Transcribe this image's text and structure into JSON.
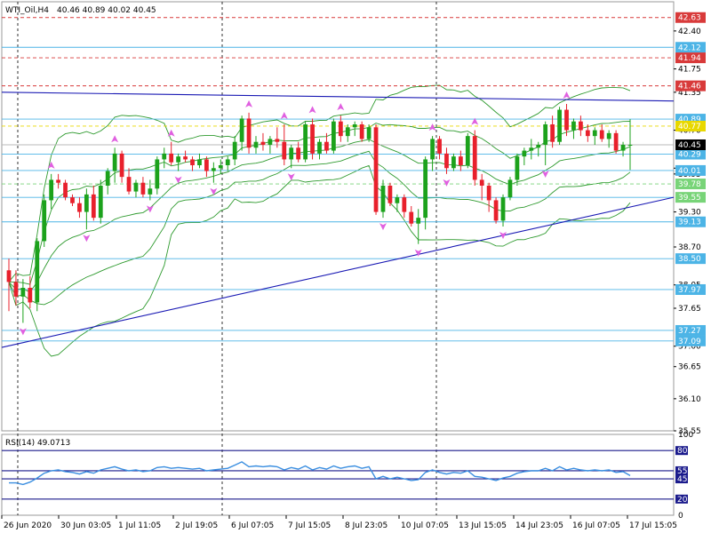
{
  "header": {
    "symbol_title": "WTI_Oil,H4",
    "ohlc": "40.46 40.89 40.02 40.45"
  },
  "colors": {
    "bull": "#1ca21c",
    "bear": "#e8202c",
    "line_blue": "#1a1ab4",
    "bb_band": "#2e9a2e",
    "hline_cyan": "#4cb4e6",
    "hline_red_dash": "#d83a3a",
    "hline_yellow_dash": "#e8d800",
    "hline_green_dash": "#78d478",
    "rsi_line": "#3a8ee0",
    "arrow_marker": "#e060e0"
  },
  "chart_data": [
    {
      "type": "candlestick",
      "name": "price-panel",
      "ylim": [
        35.55,
        42.9
      ],
      "y_ticks": [
        "42.40",
        "41.75",
        "41.35",
        "40.70",
        "40.05",
        "39.95",
        "39.30",
        "38.70",
        "38.05",
        "37.65",
        "37.00",
        "36.65",
        "36.10",
        "35.55"
      ],
      "x_tick_labels": [
        "26 Jun 2020",
        "30 Jun 03:05",
        "1 Jul 11:05",
        "2 Jul 19:05",
        "6 Jul 07:05",
        "7 Jul 15:05",
        "8 Jul 23:05",
        "10 Jul 07:05",
        "13 Jul 15:05",
        "14 Jul 23:05",
        "16 Jul 07:05",
        "17 Jul 15:05"
      ],
      "current_price": "40.45",
      "price_labels": [
        {
          "value": "42.63",
          "style": "red"
        },
        {
          "value": "42.12",
          "style": "cyan"
        },
        {
          "value": "41.94",
          "style": "red"
        },
        {
          "value": "41.46",
          "style": "red"
        },
        {
          "value": "40.89",
          "style": "cyan"
        },
        {
          "value": "40.77",
          "style": "yellow"
        },
        {
          "value": "40.29",
          "style": "cyan"
        },
        {
          "value": "40.01",
          "style": "cyan"
        },
        {
          "value": "39.78",
          "style": "green"
        },
        {
          "value": "39.55",
          "style": "green"
        },
        {
          "value": "39.13",
          "style": "cyan"
        },
        {
          "value": "38.50",
          "style": "cyan"
        },
        {
          "value": "37.97",
          "style": "cyan"
        },
        {
          "value": "37.27",
          "style": "cyan"
        },
        {
          "value": "37.09",
          "style": "cyan"
        }
      ],
      "horizontal_levels": [
        {
          "price": 42.63,
          "style": "red-dash"
        },
        {
          "price": 42.12,
          "style": "cyan"
        },
        {
          "price": 41.94,
          "style": "red-dash"
        },
        {
          "price": 41.46,
          "style": "red-dash"
        },
        {
          "price": 40.89,
          "style": "cyan"
        },
        {
          "price": 40.77,
          "style": "yellow-dash"
        },
        {
          "price": 40.45,
          "style": "gray"
        },
        {
          "price": 40.29,
          "style": "cyan"
        },
        {
          "price": 40.01,
          "style": "cyan"
        },
        {
          "price": 39.78,
          "style": "green-dash"
        },
        {
          "price": 39.55,
          "style": "cyan"
        },
        {
          "price": 39.13,
          "style": "cyan"
        },
        {
          "price": 38.5,
          "style": "cyan"
        },
        {
          "price": 37.97,
          "style": "cyan"
        },
        {
          "price": 37.27,
          "style": "cyan"
        },
        {
          "price": 37.09,
          "style": "cyan"
        }
      ],
      "candles": [
        [
          38.3,
          38.5,
          37.6,
          38.1
        ],
        [
          38.1,
          38.3,
          37.7,
          37.85
        ],
        [
          37.85,
          38.15,
          37.4,
          38.0
        ],
        [
          38.0,
          38.2,
          37.65,
          37.75
        ],
        [
          37.75,
          38.85,
          37.6,
          38.8
        ],
        [
          38.8,
          39.6,
          38.7,
          39.5
        ],
        [
          39.5,
          39.95,
          39.35,
          39.85
        ],
        [
          39.85,
          39.95,
          39.7,
          39.8
        ],
        [
          39.8,
          39.85,
          39.5,
          39.55
        ],
        [
          39.55,
          39.6,
          39.4,
          39.45
        ],
        [
          39.45,
          39.55,
          39.2,
          39.3
        ],
        [
          39.3,
          39.7,
          39.0,
          39.6
        ],
        [
          39.6,
          39.75,
          39.15,
          39.2
        ],
        [
          39.2,
          39.85,
          39.1,
          39.75
        ],
        [
          39.75,
          40.05,
          39.6,
          40.0
        ],
        [
          40.0,
          40.4,
          39.8,
          40.3
        ],
        [
          40.3,
          40.35,
          39.8,
          39.9
        ],
        [
          39.9,
          40.05,
          39.6,
          39.65
        ],
        [
          39.65,
          39.85,
          39.55,
          39.8
        ],
        [
          39.8,
          39.9,
          39.55,
          39.6
        ],
        [
          39.6,
          39.85,
          39.5,
          39.7
        ],
        [
          39.7,
          40.25,
          39.6,
          40.2
        ],
        [
          40.2,
          40.4,
          40.05,
          40.3
        ],
        [
          40.3,
          40.5,
          40.1,
          40.15
        ],
        [
          40.15,
          40.3,
          40.0,
          40.25
        ],
        [
          40.25,
          40.35,
          40.15,
          40.2
        ],
        [
          40.2,
          40.25,
          40.0,
          40.1
        ],
        [
          40.1,
          40.3,
          40.05,
          40.2
        ],
        [
          40.2,
          40.25,
          39.9,
          40.0
        ],
        [
          40.0,
          40.15,
          39.8,
          40.05
        ],
        [
          40.05,
          40.2,
          39.95,
          40.1
        ],
        [
          40.1,
          40.25,
          40.0,
          40.2
        ],
        [
          40.2,
          40.6,
          40.1,
          40.5
        ],
        [
          40.5,
          40.95,
          40.35,
          40.9
        ],
        [
          40.9,
          41.0,
          40.3,
          40.4
        ],
        [
          40.4,
          40.6,
          40.3,
          40.5
        ],
        [
          40.5,
          40.65,
          40.35,
          40.45
        ],
        [
          40.45,
          40.6,
          40.3,
          40.55
        ],
        [
          40.55,
          40.75,
          40.4,
          40.5
        ],
        [
          40.5,
          40.8,
          40.1,
          40.2
        ],
        [
          40.2,
          40.45,
          40.05,
          40.4
        ],
        [
          40.4,
          40.5,
          40.15,
          40.2
        ],
        [
          40.2,
          40.85,
          40.15,
          40.8
        ],
        [
          40.8,
          40.9,
          40.2,
          40.3
        ],
        [
          40.3,
          40.55,
          40.2,
          40.5
        ],
        [
          40.5,
          40.65,
          40.3,
          40.35
        ],
        [
          40.35,
          40.9,
          40.3,
          40.85
        ],
        [
          40.85,
          40.95,
          40.5,
          40.6
        ],
        [
          40.6,
          40.8,
          40.5,
          40.75
        ],
        [
          40.75,
          40.85,
          40.6,
          40.8
        ],
        [
          40.8,
          40.85,
          40.5,
          40.55
        ],
        [
          40.55,
          40.8,
          40.5,
          40.75
        ],
        [
          40.75,
          40.8,
          39.25,
          39.3
        ],
        [
          39.3,
          39.85,
          39.2,
          39.75
        ],
        [
          39.75,
          39.8,
          39.4,
          39.45
        ],
        [
          39.45,
          39.6,
          39.3,
          39.55
        ],
        [
          39.55,
          39.6,
          39.2,
          39.3
        ],
        [
          39.3,
          39.4,
          39.05,
          39.1
        ],
        [
          39.1,
          39.35,
          38.75,
          39.2
        ],
        [
          39.2,
          40.25,
          39.0,
          40.2
        ],
        [
          40.2,
          40.6,
          40.0,
          40.55
        ],
        [
          40.55,
          40.6,
          40.2,
          40.3
        ],
        [
          40.3,
          40.4,
          39.95,
          40.05
        ],
        [
          40.05,
          40.3,
          40.0,
          40.25
        ],
        [
          40.25,
          40.35,
          40.0,
          40.1
        ],
        [
          40.1,
          40.65,
          40.05,
          40.6
        ],
        [
          40.6,
          40.7,
          39.75,
          39.85
        ],
        [
          39.85,
          39.95,
          39.5,
          39.75
        ],
        [
          39.75,
          39.8,
          39.3,
          39.5
        ],
        [
          39.5,
          39.55,
          39.1,
          39.15
        ],
        [
          39.15,
          39.6,
          39.05,
          39.55
        ],
        [
          39.55,
          39.9,
          39.5,
          39.85
        ],
        [
          39.85,
          40.3,
          39.75,
          40.25
        ],
        [
          40.25,
          40.4,
          40.1,
          40.35
        ],
        [
          40.35,
          40.55,
          40.2,
          40.4
        ],
        [
          40.4,
          40.5,
          40.25,
          40.45
        ],
        [
          40.45,
          40.85,
          40.1,
          40.8
        ],
        [
          40.8,
          40.95,
          40.4,
          40.5
        ],
        [
          40.5,
          41.1,
          40.45,
          41.05
        ],
        [
          41.05,
          41.15,
          40.6,
          40.7
        ],
        [
          40.7,
          40.9,
          40.55,
          40.85
        ],
        [
          40.85,
          40.95,
          40.6,
          40.7
        ],
        [
          40.7,
          40.8,
          40.5,
          40.6
        ],
        [
          40.6,
          40.75,
          40.45,
          40.7
        ],
        [
          40.7,
          40.8,
          40.5,
          40.55
        ],
        [
          40.55,
          40.7,
          40.4,
          40.65
        ],
        [
          40.65,
          40.7,
          40.3,
          40.35
        ],
        [
          40.35,
          40.5,
          40.25,
          40.45
        ],
        [
          40.45,
          40.89,
          40.02,
          40.45
        ]
      ],
      "trendlines": [
        {
          "points": [
            [
              0,
              41.35
            ],
            [
              99,
              41.2
            ]
          ],
          "style": "blue"
        },
        {
          "points": [
            [
              0,
              36.98
            ],
            [
              99,
              39.55
            ]
          ],
          "style": "blue"
        }
      ]
    },
    {
      "type": "line",
      "name": "rsi-panel",
      "title": "RSI(14) 49.0713",
      "ylim": [
        0,
        100
      ],
      "y_ticks": [
        "100",
        "80",
        "55",
        "45",
        "20",
        "0"
      ],
      "levels": [
        80,
        55,
        45,
        20
      ],
      "values": [
        40,
        40,
        38,
        41,
        46,
        52,
        55,
        56,
        54,
        53,
        51,
        54,
        52,
        56,
        58,
        60,
        57,
        55,
        56,
        54,
        55,
        59,
        60,
        58,
        59,
        58,
        57,
        58,
        55,
        56,
        57,
        58,
        62,
        66,
        60,
        61,
        60,
        61,
        60,
        56,
        59,
        57,
        61,
        56,
        59,
        57,
        61,
        58,
        60,
        61,
        58,
        60,
        45,
        48,
        45,
        47,
        45,
        43,
        44,
        53,
        56,
        53,
        51,
        53,
        52,
        55,
        48,
        47,
        45,
        43,
        46,
        48,
        52,
        54,
        55,
        55,
        58,
        55,
        60,
        56,
        58,
        56,
        55,
        56,
        55,
        56,
        53,
        54,
        49
      ]
    }
  ]
}
